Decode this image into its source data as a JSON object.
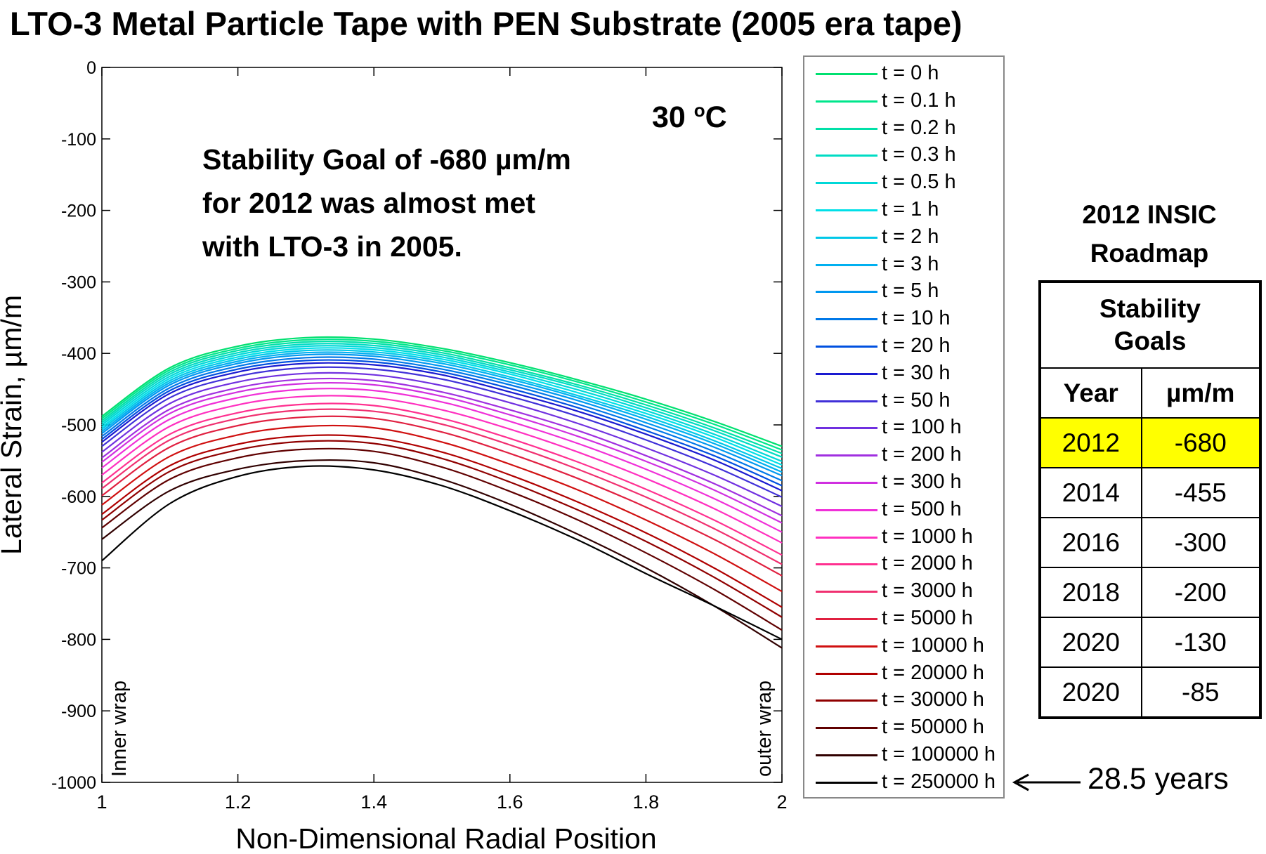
{
  "title": "LTO-3 Metal Particle Tape with PEN Substrate  (2005 era tape)",
  "annotations": {
    "temperature": "30 ",
    "temperature_sup": "o",
    "temperature_unit": "C",
    "goal_line1": "Stability Goal of -680 µm/m",
    "goal_line2": "for 2012 was almost met",
    "goal_line3": "with LTO-3 in 2005.",
    "inner_wrap": "Inner wrap",
    "outer_wrap": "outer wrap",
    "years_note": "28.5 years"
  },
  "roadmap": {
    "title_line1": "2012 INSIC",
    "title_line2": "Roadmap",
    "goals_line1": "Stability",
    "goals_line2": "Goals",
    "col_year": "Year",
    "col_unit": "µm/m",
    "rows": [
      {
        "year": "2012",
        "value": "-680"
      },
      {
        "year": "2014",
        "value": "-455"
      },
      {
        "year": "2016",
        "value": "-300"
      },
      {
        "year": "2018",
        "value": "-200"
      },
      {
        "year": "2020",
        "value": "-130"
      },
      {
        "year": "2020",
        "value": "-85"
      }
    ],
    "highlight_color": "#ffff00"
  },
  "chart_data": {
    "type": "line",
    "title": "LTO-3 Metal Particle Tape with PEN Substrate  (2005 era tape)",
    "xlabel": "Non-Dimensional Radial Position",
    "ylabel": "Lateral Strain, µm/m",
    "xlim": [
      1,
      2
    ],
    "ylim": [
      -1000,
      0
    ],
    "xticks": [
      "1",
      "1.2",
      "1.4",
      "1.6",
      "1.8",
      "2"
    ],
    "yticks": [
      "0",
      "-100",
      "-200",
      "-300",
      "-400",
      "-500",
      "-600",
      "-700",
      "-800",
      "-900",
      "-1000"
    ],
    "grid": false,
    "legend_position": "right",
    "x": [
      1.0,
      1.1,
      1.2,
      1.3,
      1.4,
      1.5,
      1.6,
      1.7,
      1.8,
      1.9,
      2.0
    ],
    "series": [
      {
        "name": "t = 0 h",
        "color": "#00e070",
        "values": [
          -488,
          -420,
          -390,
          -378,
          -380,
          -393,
          -413,
          -437,
          -464,
          -495,
          -530
        ]
      },
      {
        "name": "t = 0.1 h",
        "color": "#00e68c",
        "values": [
          -491,
          -423,
          -393,
          -381,
          -383,
          -396,
          -416,
          -440,
          -468,
          -499,
          -535
        ]
      },
      {
        "name": "t = 0.2 h",
        "color": "#00e0a8",
        "values": [
          -494,
          -426,
          -396,
          -384,
          -386,
          -399,
          -420,
          -444,
          -472,
          -504,
          -540
        ]
      },
      {
        "name": "t = 0.3 h",
        "color": "#00dcc4",
        "values": [
          -497,
          -429,
          -399,
          -387,
          -389,
          -402,
          -423,
          -447,
          -476,
          -508,
          -545
        ]
      },
      {
        "name": "t = 0.5 h",
        "color": "#00d8d8",
        "values": [
          -500,
          -432,
          -402,
          -390,
          -392,
          -405,
          -426,
          -451,
          -480,
          -513,
          -551
        ]
      },
      {
        "name": "t = 1 h",
        "color": "#00e0e8",
        "values": [
          -503,
          -435,
          -405,
          -393,
          -395,
          -408,
          -429,
          -455,
          -484,
          -517,
          -556
        ]
      },
      {
        "name": "t = 2 h",
        "color": "#00c8e8",
        "values": [
          -506,
          -438,
          -408,
          -396,
          -398,
          -411,
          -433,
          -459,
          -488,
          -522,
          -561
        ]
      },
      {
        "name": "t = 3 h",
        "color": "#00b0f0",
        "values": [
          -509,
          -441,
          -411,
          -399,
          -401,
          -414,
          -436,
          -462,
          -492,
          -526,
          -566
        ]
      },
      {
        "name": "t = 5 h",
        "color": "#0098f0",
        "values": [
          -512,
          -444,
          -414,
          -402,
          -404,
          -418,
          -440,
          -466,
          -497,
          -531,
          -571
        ]
      },
      {
        "name": "t = 10 h",
        "color": "#0078e8",
        "values": [
          -516,
          -448,
          -418,
          -406,
          -408,
          -422,
          -444,
          -471,
          -502,
          -537,
          -578
        ]
      },
      {
        "name": "t = 20 h",
        "color": "#0050e0",
        "values": [
          -520,
          -452,
          -422,
          -410,
          -412,
          -426,
          -449,
          -476,
          -508,
          -543,
          -585
        ]
      },
      {
        "name": "t = 30 h",
        "color": "#1a1ad0",
        "values": [
          -524,
          -456,
          -426,
          -414,
          -416,
          -430,
          -454,
          -481,
          -513,
          -549,
          -592
        ]
      },
      {
        "name": "t = 50 h",
        "color": "#4030d8",
        "values": [
          -530,
          -462,
          -432,
          -420,
          -422,
          -436,
          -460,
          -488,
          -521,
          -558,
          -601
        ]
      },
      {
        "name": "t = 100 h",
        "color": "#7030e0",
        "values": [
          -538,
          -470,
          -440,
          -428,
          -430,
          -445,
          -469,
          -498,
          -532,
          -570,
          -614
        ]
      },
      {
        "name": "t = 200 h",
        "color": "#a030e0",
        "values": [
          -546,
          -478,
          -448,
          -436,
          -438,
          -454,
          -479,
          -508,
          -543,
          -582,
          -627
        ]
      },
      {
        "name": "t = 300 h",
        "color": "#d030e0",
        "values": [
          -552,
          -484,
          -454,
          -442,
          -444,
          -460,
          -486,
          -516,
          -551,
          -591,
          -637
        ]
      },
      {
        "name": "t = 500 h",
        "color": "#f030d8",
        "values": [
          -560,
          -492,
          -462,
          -450,
          -452,
          -468,
          -495,
          -526,
          -562,
          -603,
          -650
        ]
      },
      {
        "name": "t = 1000 h",
        "color": "#ff30c0",
        "values": [
          -570,
          -502,
          -472,
          -460,
          -462,
          -479,
          -506,
          -538,
          -575,
          -617,
          -665
        ]
      },
      {
        "name": "t = 2000 h",
        "color": "#ff3090",
        "values": [
          -581,
          -513,
          -483,
          -471,
          -473,
          -491,
          -519,
          -552,
          -590,
          -633,
          -682
        ]
      },
      {
        "name": "t = 3000 h",
        "color": "#f03070",
        "values": [
          -589,
          -521,
          -491,
          -479,
          -481,
          -499,
          -528,
          -562,
          -601,
          -645,
          -695
        ]
      },
      {
        "name": "t = 5000 h",
        "color": "#e02040",
        "values": [
          -599,
          -531,
          -501,
          -489,
          -491,
          -510,
          -540,
          -575,
          -615,
          -660,
          -711
        ]
      },
      {
        "name": "t = 10000 h",
        "color": "#d01010",
        "values": [
          -612,
          -544,
          -514,
          -502,
          -504,
          -524,
          -555,
          -591,
          -633,
          -680,
          -733
        ]
      },
      {
        "name": "t = 20000 h",
        "color": "#b00000",
        "values": [
          -625,
          -557,
          -527,
          -515,
          -518,
          -538,
          -570,
          -608,
          -651,
          -700,
          -755
        ]
      },
      {
        "name": "t = 30000 h",
        "color": "#900000",
        "values": [
          -633,
          -565,
          -535,
          -523,
          -526,
          -547,
          -580,
          -619,
          -663,
          -713,
          -769
        ]
      },
      {
        "name": "t = 50000 h",
        "color": "#600000",
        "values": [
          -644,
          -576,
          -546,
          -534,
          -537,
          -559,
          -593,
          -633,
          -679,
          -730,
          -787
        ]
      },
      {
        "name": "t = 100000 h",
        "color": "#300000",
        "values": [
          -660,
          -592,
          -562,
          -550,
          -553,
          -576,
          -611,
          -653,
          -700,
          -753,
          -812
        ]
      },
      {
        "name": "t = 250000 h",
        "color": "#000000",
        "values": [
          -690,
          -610,
          -572,
          -558,
          -563,
          -585,
          -620,
          -661,
          -708,
          -753,
          -800
        ]
      }
    ]
  }
}
